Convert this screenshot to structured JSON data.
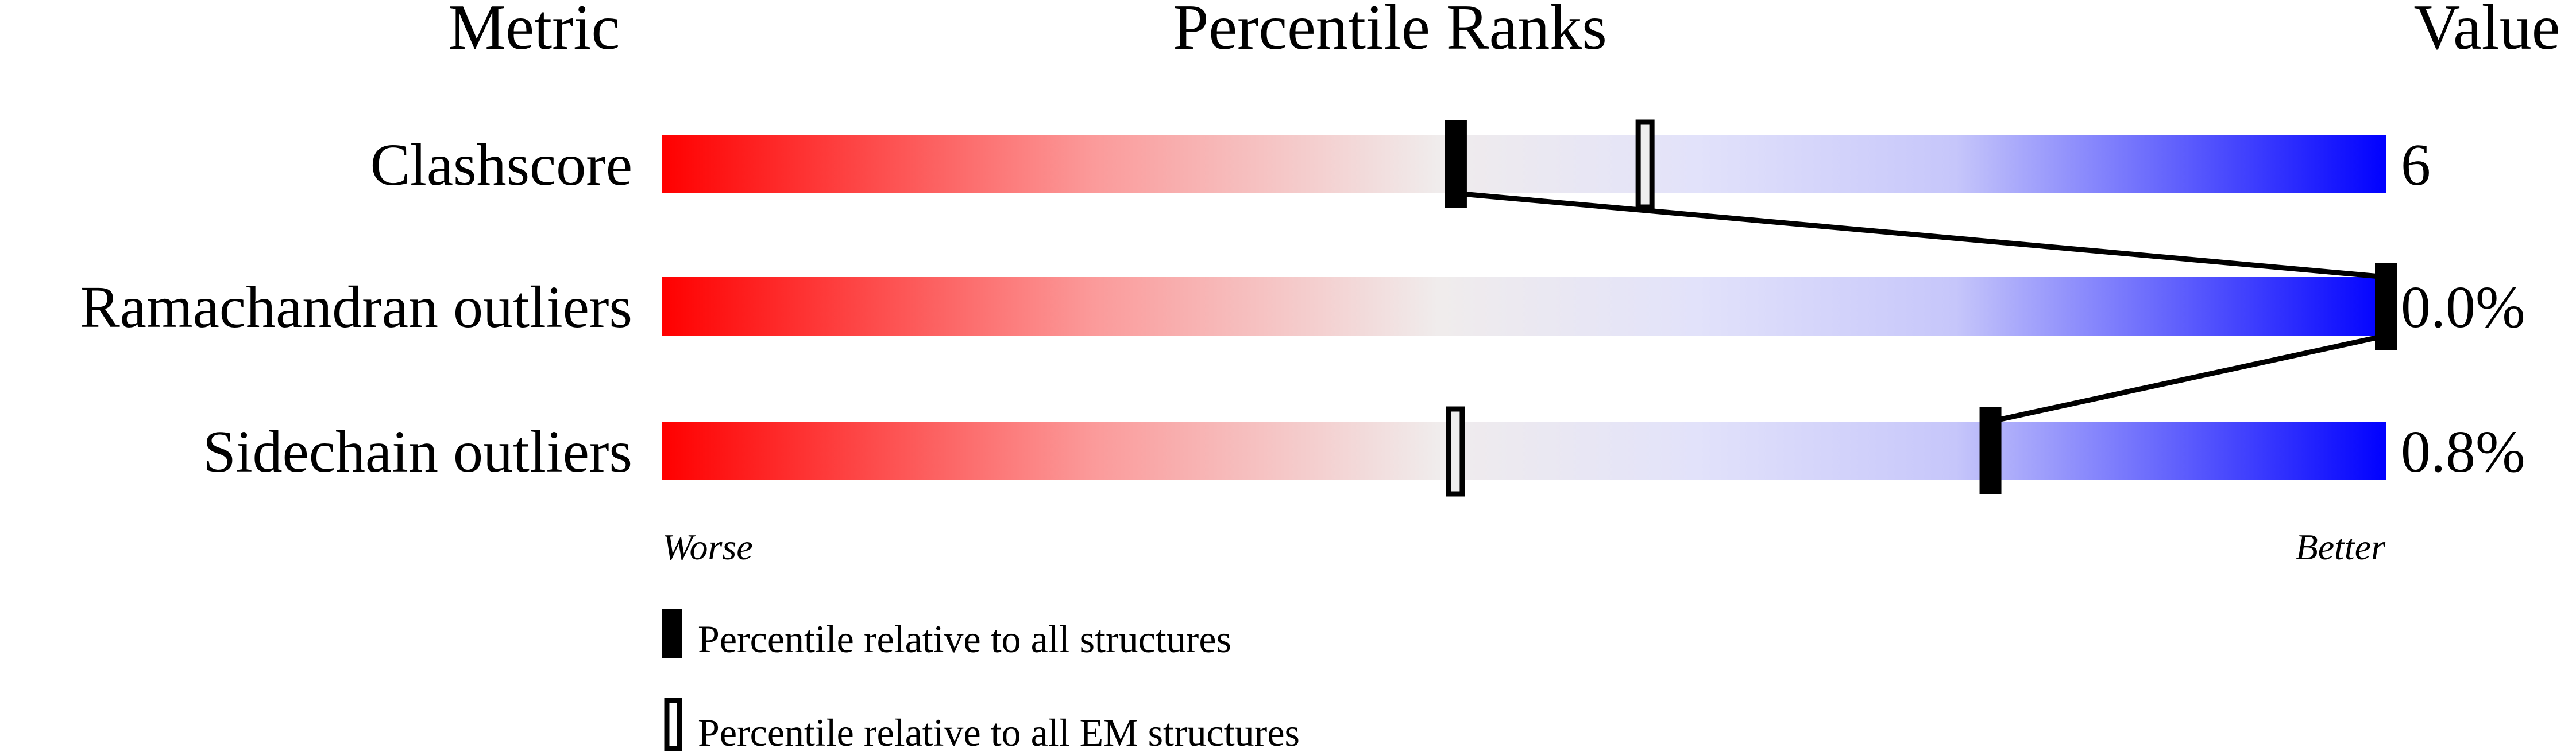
{
  "chart_data": {
    "type": "percentile-bar",
    "headers": {
      "metric": "Metric",
      "ranks": "Percentile Ranks",
      "value": "Value"
    },
    "xlim": [
      0,
      100
    ],
    "metrics": [
      {
        "name": "Clashscore",
        "value": "6",
        "percentile_all": 46,
        "percentile_em": 57
      },
      {
        "name": "Ramachandran outliers",
        "value": "0.0%",
        "percentile_all": 100,
        "percentile_em": null
      },
      {
        "name": "Sidechain outliers",
        "value": "0.8%",
        "percentile_all": 77,
        "percentile_em": 46
      }
    ],
    "axis": {
      "left": "Worse",
      "right": "Better"
    },
    "legend": [
      {
        "marker": "filled",
        "label": "Percentile relative to all structures"
      },
      {
        "marker": "hollow",
        "label": "Percentile relative to all EM structures"
      }
    ],
    "gradient_colors": [
      "#ff0000",
      "#f0f0f0",
      "#0000ff"
    ]
  }
}
